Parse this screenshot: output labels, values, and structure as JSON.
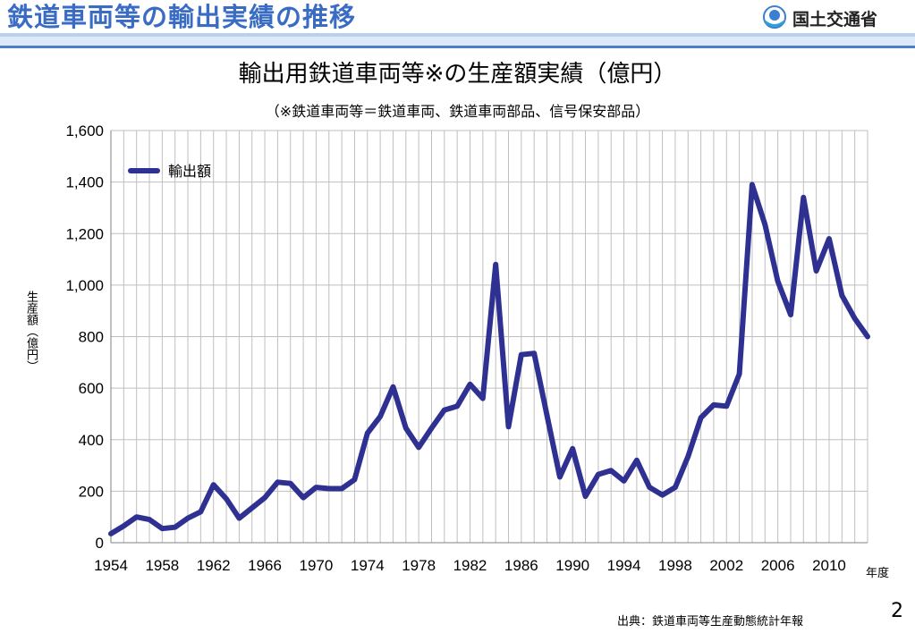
{
  "header": {
    "slide_title": "鉄道車両等の輸出実績の推移",
    "logo_text": "国土交通省",
    "logo_icon": "mlit-logo-icon"
  },
  "chart_title": "輸出用鉄道車両等※の生産額実績（億円）",
  "chart_subtitle": "（※鉄道車両等＝鉄道車両、鉄道車両部品、信号保安部品）",
  "footer": {
    "source": "出典：鉄道車両等生産動態統計年報",
    "page_number": "2"
  },
  "colors": {
    "series": "#2e3192",
    "title": "#3a6cc4",
    "grid": "#bfbfbf"
  },
  "chart_data": {
    "type": "line",
    "xlabel": "年度",
    "ylabel": "生産額（億円）",
    "xlim": [
      1954,
      2013
    ],
    "ylim": [
      0,
      1600
    ],
    "grid": true,
    "legend_position": "top-left",
    "x_ticks": [
      1954,
      1958,
      1962,
      1966,
      1970,
      1974,
      1978,
      1982,
      1986,
      1990,
      1994,
      1998,
      2002,
      2006,
      2010
    ],
    "y_ticks": [
      0,
      200,
      400,
      600,
      800,
      1000,
      1200,
      1400,
      1600
    ],
    "y_tick_labels": [
      "0",
      "200",
      "400",
      "600",
      "800",
      "1,000",
      "1,200",
      "1,400",
      "1,600"
    ],
    "series": [
      {
        "name": "輸出額",
        "x": [
          1954,
          1955,
          1956,
          1957,
          1958,
          1959,
          1960,
          1961,
          1962,
          1963,
          1964,
          1965,
          1966,
          1967,
          1968,
          1969,
          1970,
          1971,
          1972,
          1973,
          1974,
          1975,
          1976,
          1977,
          1978,
          1979,
          1980,
          1981,
          1982,
          1983,
          1984,
          1985,
          1986,
          1987,
          1988,
          1989,
          1990,
          1991,
          1992,
          1993,
          1994,
          1995,
          1996,
          1997,
          1998,
          1999,
          2000,
          2001,
          2002,
          2003,
          2004,
          2005,
          2006,
          2007,
          2008,
          2009,
          2010,
          2011,
          2012,
          2013
        ],
        "values": [
          35,
          65,
          100,
          90,
          55,
          60,
          95,
          120,
          225,
          170,
          95,
          135,
          175,
          235,
          230,
          175,
          215,
          210,
          210,
          245,
          425,
          490,
          605,
          445,
          370,
          445,
          515,
          530,
          615,
          560,
          1080,
          450,
          730,
          735,
          495,
          255,
          365,
          180,
          265,
          280,
          240,
          320,
          215,
          185,
          215,
          335,
          485,
          535,
          530,
          655,
          1390,
          1235,
          1015,
          885,
          1340,
          1055,
          1180,
          960,
          870,
          800
        ]
      }
    ]
  }
}
